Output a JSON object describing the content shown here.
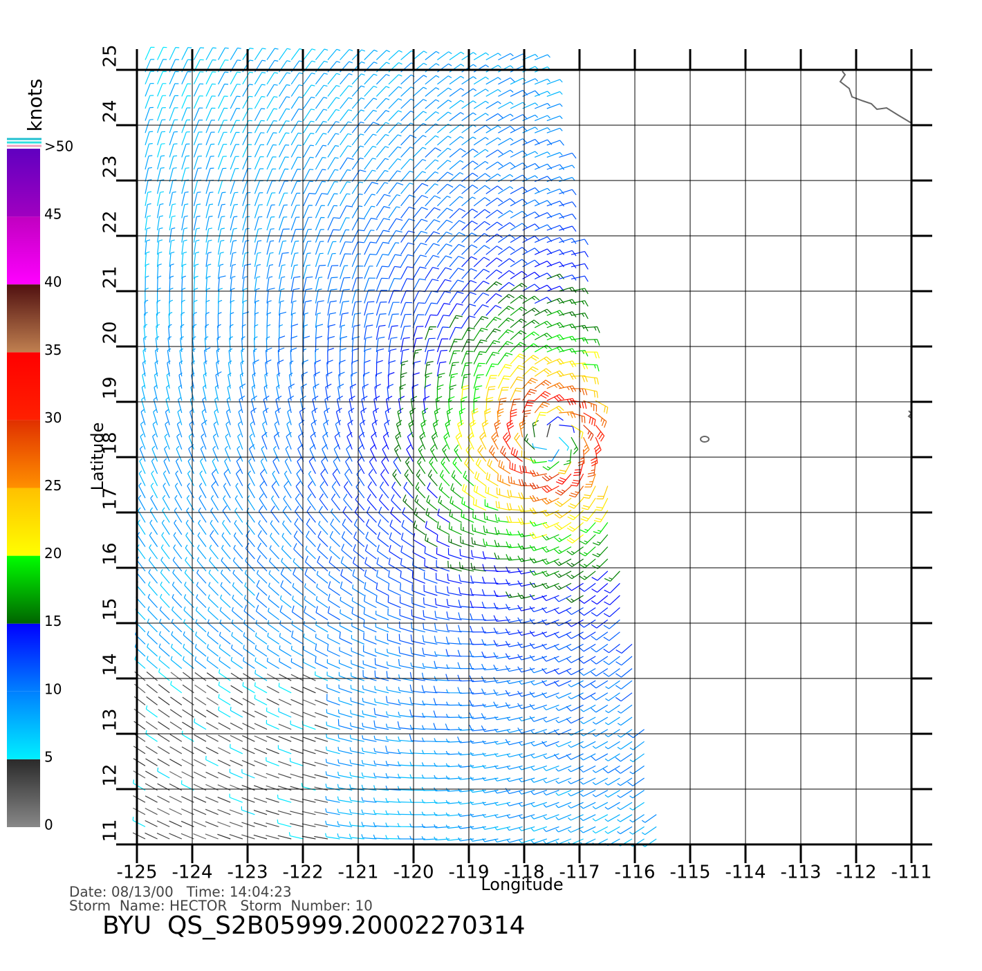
{
  "chart_data": {
    "type": "wind-map",
    "title": "BYU  QS_S2B05999.20002270314",
    "info": [
      "Date: 08/13/00   Time: 14:04:23",
      "Storm  Name: HECTOR   Storm  Number: 10"
    ],
    "xlabel": "Longitude",
    "ylabel": "Latitude",
    "xlim": [
      -125,
      -111
    ],
    "ylim": [
      11,
      25
    ],
    "xticks": [
      -125,
      -124,
      -123,
      -122,
      -121,
      -120,
      -119,
      -118,
      -117,
      -116,
      -115,
      -114,
      -113,
      -112,
      -111
    ],
    "yticks": [
      11,
      12,
      13,
      14,
      15,
      16,
      17,
      18,
      19,
      20,
      21,
      22,
      23,
      24,
      25
    ],
    "grid": true,
    "colorbar": {
      "title": "knots",
      "ticks": [
        0,
        5,
        10,
        15,
        20,
        25,
        30,
        35,
        40,
        45,
        {
          "value": 50,
          "label": ">50"
        }
      ],
      "colors": [
        [
          "#888888",
          "#2a2a2a"
        ],
        [
          "#00f0ff",
          "#0080ff"
        ],
        [
          "#0080ff",
          "#0000ff"
        ],
        [
          "#006400",
          "#00ff00"
        ],
        [
          "#ffff00",
          "#ffc000"
        ],
        [
          "#ff9000",
          "#e03000"
        ],
        [
          "#ff2000",
          "#ff0000"
        ],
        [
          "#c08050",
          "#501010"
        ],
        [
          "#ff00ff",
          "#c000c0"
        ],
        [
          "#a000c0",
          "#6000c0"
        ]
      ]
    }
  }
}
